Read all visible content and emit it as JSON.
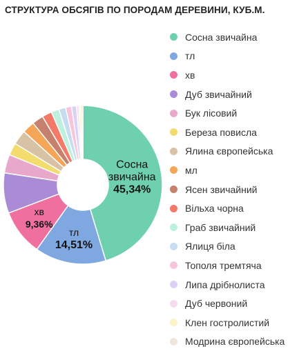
{
  "title": "СТРУКТУРА ОБСЯГІВ ПО ПОРОДАМ ДЕРЕВИНИ, КУБ.М.",
  "chart_data": {
    "type": "pie",
    "donut": true,
    "title": "СТРУКТУРА ОБСЯГІВ ПО ПОРОДАМ ДЕРЕВИНИ, КУБ.М.",
    "legend_position": "right",
    "series": [
      {
        "name": "Сосна звичайна",
        "value": 45.34,
        "label_lines": [
          "Сосна",
          "звичайна"
        ],
        "value_label": "45,34%",
        "color": "#6fd0b0"
      },
      {
        "name": "тл",
        "value": 14.51,
        "label_lines": [
          "тл"
        ],
        "value_label": "14,51%",
        "color": "#7fa8e0"
      },
      {
        "name": "хв",
        "value": 9.36,
        "label_lines": [
          "хв"
        ],
        "value_label": "9,36%",
        "color": "#ef6f9f"
      },
      {
        "name": "Дуб звичайний",
        "value": 8.2,
        "color": "#a98bd6"
      },
      {
        "name": "Бук лісовий",
        "value": 3.8,
        "color": "#e8a8cc"
      },
      {
        "name": "Береза повисла",
        "value": 2.5,
        "color": "#f2dc6e"
      },
      {
        "name": "Ялина європейська",
        "value": 3.0,
        "color": "#d8c2a6"
      },
      {
        "name": "мл",
        "value": 2.5,
        "color": "#f4a558"
      },
      {
        "name": "Ясен звичайний",
        "value": 2.3,
        "color": "#c6806e"
      },
      {
        "name": "Вільха чорна",
        "value": 2.0,
        "color": "#f47a68"
      },
      {
        "name": "Граб звичайний",
        "value": 1.6,
        "color": "#bff0de"
      },
      {
        "name": "Ялиця біла",
        "value": 1.4,
        "color": "#c5dcf2"
      },
      {
        "name": "Тополя тремтяча",
        "value": 1.2,
        "color": "#f8c4dc"
      },
      {
        "name": "Липа дрібнолиста",
        "value": 1.0,
        "color": "#ddd0f4"
      },
      {
        "name": "Дуб червоний",
        "value": 0.5,
        "color": "#f8dcee"
      },
      {
        "name": "Клен гостролистий",
        "value": 0.4,
        "color": "#fbf3c6"
      },
      {
        "name": "Модрина європейська",
        "value": 0.39,
        "color": "#ede6da"
      }
    ]
  }
}
